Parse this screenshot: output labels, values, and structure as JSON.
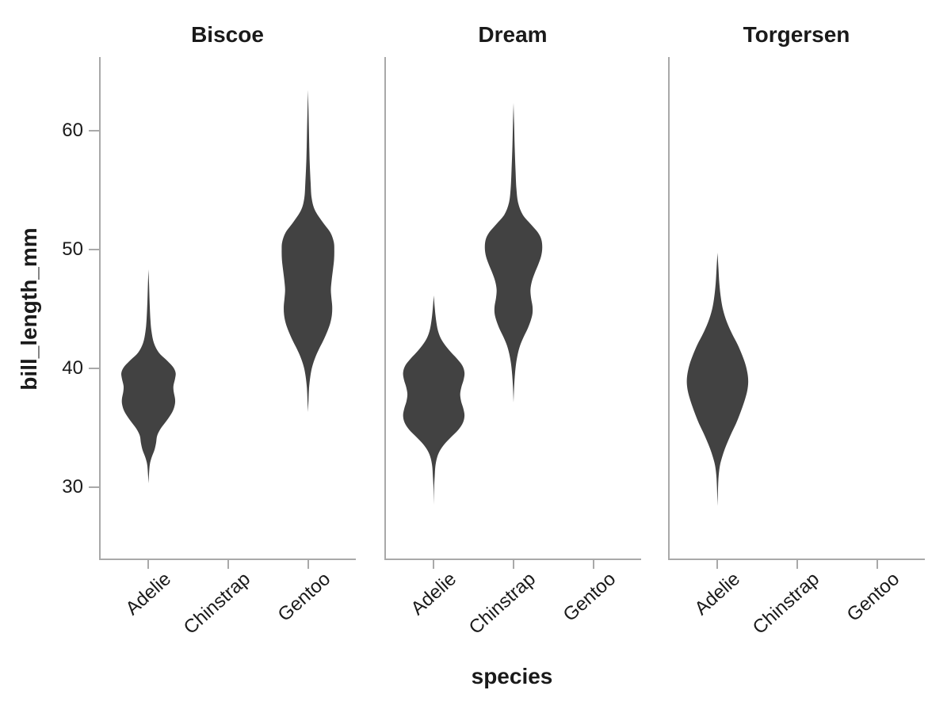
{
  "figure": {
    "background": "#ffffff",
    "axis_color": "#a9a9a9",
    "violin_fill": "#424242",
    "title_text_color": "#1a1a1a",
    "tick_text_color": "#1a1a1a"
  },
  "chart_data": {
    "type": "violin",
    "title": "",
    "xlabel": "species",
    "ylabel": "bill_length_mm",
    "categories": [
      "Adelie",
      "Chinstrap",
      "Gentoo"
    ],
    "y_ticks": [
      60,
      50,
      40,
      30
    ],
    "ylim": [
      24.0,
      66.2
    ],
    "grid": false,
    "legend_position": "none",
    "facets": [
      {
        "label": "Biscoe",
        "violins": [
          {
            "species": "Adelie",
            "category_index": 0,
            "max_halfwidth_units": 0.34,
            "profile": [
              [
                48.2,
                0
              ],
              [
                47.0,
                0.02
              ],
              [
                45.5,
                0.04
              ],
              [
                44.0,
                0.07
              ],
              [
                43.0,
                0.11
              ],
              [
                42.0,
                0.2
              ],
              [
                41.2,
                0.38
              ],
              [
                40.6,
                0.65
              ],
              [
                40.0,
                0.9
              ],
              [
                39.5,
                1.0
              ],
              [
                39.0,
                0.98
              ],
              [
                38.4,
                0.92
              ],
              [
                37.9,
                0.93
              ],
              [
                37.3,
                0.98
              ],
              [
                36.8,
                0.97
              ],
              [
                36.2,
                0.88
              ],
              [
                35.5,
                0.68
              ],
              [
                34.8,
                0.45
              ],
              [
                34.2,
                0.32
              ],
              [
                33.6,
                0.28
              ],
              [
                33.0,
                0.22
              ],
              [
                32.4,
                0.12
              ],
              [
                31.8,
                0.05
              ],
              [
                31.0,
                0.02
              ],
              [
                30.2,
                0
              ]
            ]
          },
          {
            "species": "Gentoo",
            "category_index": 2,
            "max_halfwidth_units": 0.33,
            "profile": [
              [
                63.3,
                0
              ],
              [
                61.5,
                0.02
              ],
              [
                59.5,
                0.04
              ],
              [
                57.5,
                0.06
              ],
              [
                55.5,
                0.1
              ],
              [
                54.2,
                0.14
              ],
              [
                53.2,
                0.26
              ],
              [
                52.2,
                0.55
              ],
              [
                51.3,
                0.85
              ],
              [
                50.5,
                0.98
              ],
              [
                49.8,
                1.0
              ],
              [
                49.0,
                0.99
              ],
              [
                48.2,
                0.95
              ],
              [
                47.3,
                0.9
              ],
              [
                46.5,
                0.87
              ],
              [
                45.8,
                0.89
              ],
              [
                45.1,
                0.92
              ],
              [
                44.4,
                0.91
              ],
              [
                43.7,
                0.85
              ],
              [
                43.0,
                0.74
              ],
              [
                42.2,
                0.58
              ],
              [
                41.5,
                0.42
              ],
              [
                40.8,
                0.28
              ],
              [
                40.0,
                0.16
              ],
              [
                39.2,
                0.09
              ],
              [
                38.2,
                0.04
              ],
              [
                37.2,
                0.02
              ],
              [
                36.2,
                0
              ]
            ]
          }
        ]
      },
      {
        "label": "Dream",
        "violins": [
          {
            "species": "Adelie",
            "category_index": 0,
            "max_halfwidth_units": 0.385,
            "profile": [
              [
                46.0,
                0
              ],
              [
                45.0,
                0.03
              ],
              [
                44.0,
                0.07
              ],
              [
                43.0,
                0.14
              ],
              [
                42.2,
                0.27
              ],
              [
                41.4,
                0.5
              ],
              [
                40.7,
                0.75
              ],
              [
                40.1,
                0.93
              ],
              [
                39.5,
                1.0
              ],
              [
                38.9,
                0.97
              ],
              [
                38.3,
                0.9
              ],
              [
                37.7,
                0.86
              ],
              [
                37.1,
                0.89
              ],
              [
                36.5,
                0.96
              ],
              [
                35.9,
                1.0
              ],
              [
                35.3,
                0.95
              ],
              [
                34.7,
                0.8
              ],
              [
                34.1,
                0.57
              ],
              [
                33.5,
                0.35
              ],
              [
                32.9,
                0.19
              ],
              [
                32.3,
                0.1
              ],
              [
                31.6,
                0.05
              ],
              [
                30.8,
                0.03
              ],
              [
                29.8,
                0.01
              ],
              [
                28.4,
                0
              ]
            ]
          },
          {
            "species": "Chinstrap",
            "category_index": 1,
            "max_halfwidth_units": 0.36,
            "profile": [
              [
                62.2,
                0
              ],
              [
                60.5,
                0.02
              ],
              [
                58.5,
                0.04
              ],
              [
                56.5,
                0.07
              ],
              [
                55.0,
                0.1
              ],
              [
                53.8,
                0.16
              ],
              [
                52.8,
                0.32
              ],
              [
                52.0,
                0.6
              ],
              [
                51.3,
                0.85
              ],
              [
                50.7,
                0.97
              ],
              [
                50.0,
                1.0
              ],
              [
                49.3,
                0.96
              ],
              [
                48.6,
                0.86
              ],
              [
                47.9,
                0.74
              ],
              [
                47.2,
                0.64
              ],
              [
                46.5,
                0.59
              ],
              [
                45.8,
                0.61
              ],
              [
                45.1,
                0.66
              ],
              [
                44.5,
                0.66
              ],
              [
                43.9,
                0.6
              ],
              [
                43.2,
                0.49
              ],
              [
                42.5,
                0.35
              ],
              [
                41.8,
                0.23
              ],
              [
                41.1,
                0.15
              ],
              [
                40.3,
                0.09
              ],
              [
                39.4,
                0.05
              ],
              [
                38.3,
                0.02
              ],
              [
                37.0,
                0
              ]
            ]
          }
        ]
      },
      {
        "label": "Torgersen",
        "violins": [
          {
            "species": "Adelie",
            "category_index": 0,
            "max_halfwidth_units": 0.385,
            "profile": [
              [
                49.6,
                0
              ],
              [
                48.3,
                0.03
              ],
              [
                47.0,
                0.06
              ],
              [
                45.8,
                0.11
              ],
              [
                44.8,
                0.18
              ],
              [
                43.8,
                0.3
              ],
              [
                42.8,
                0.47
              ],
              [
                41.9,
                0.65
              ],
              [
                41.0,
                0.8
              ],
              [
                40.2,
                0.91
              ],
              [
                39.4,
                0.98
              ],
              [
                38.7,
                1.0
              ],
              [
                38.0,
                0.97
              ],
              [
                37.3,
                0.9
              ],
              [
                36.6,
                0.81
              ],
              [
                35.9,
                0.71
              ],
              [
                35.2,
                0.6
              ],
              [
                34.5,
                0.47
              ],
              [
                33.8,
                0.35
              ],
              [
                33.1,
                0.24
              ],
              [
                32.4,
                0.15
              ],
              [
                31.7,
                0.08
              ],
              [
                30.9,
                0.04
              ],
              [
                30.0,
                0.02
              ],
              [
                28.3,
                0
              ]
            ]
          }
        ]
      }
    ]
  }
}
